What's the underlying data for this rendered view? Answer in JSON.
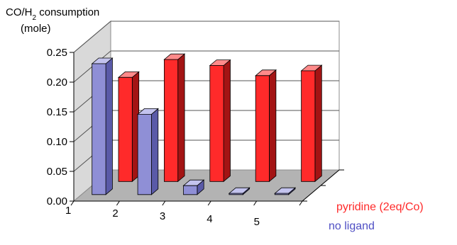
{
  "chart_data": {
    "type": "bar",
    "title": "",
    "ylabel_line1_main": "CO/H",
    "ylabel_line1_sub": "2",
    "ylabel_line1_rest": " consumption",
    "ylabel_line2": "(mole)",
    "xlabel": "",
    "categories": [
      "1",
      "2",
      "3",
      "4",
      "5"
    ],
    "yticks": [
      "0.00",
      "0.05",
      "0.10",
      "0.15",
      "0.20",
      "0.25"
    ],
    "ylim": [
      0,
      0.25
    ],
    "series": [
      {
        "name": "pyridine (2eq/Co)",
        "color": "#ff2a2a",
        "side": "#a31414",
        "top": "#ff8a8a",
        "values": [
          0.175,
          0.205,
          0.195,
          0.178,
          0.186
        ]
      },
      {
        "name": "no ligand",
        "color": "#8f8fd6",
        "side": "#5a5aa8",
        "top": "#c3c3ee",
        "values": [
          0.22,
          0.135,
          0.015,
          0.002,
          0.002
        ]
      }
    ],
    "grid": true,
    "legend": "series labels on depth axis at right"
  }
}
